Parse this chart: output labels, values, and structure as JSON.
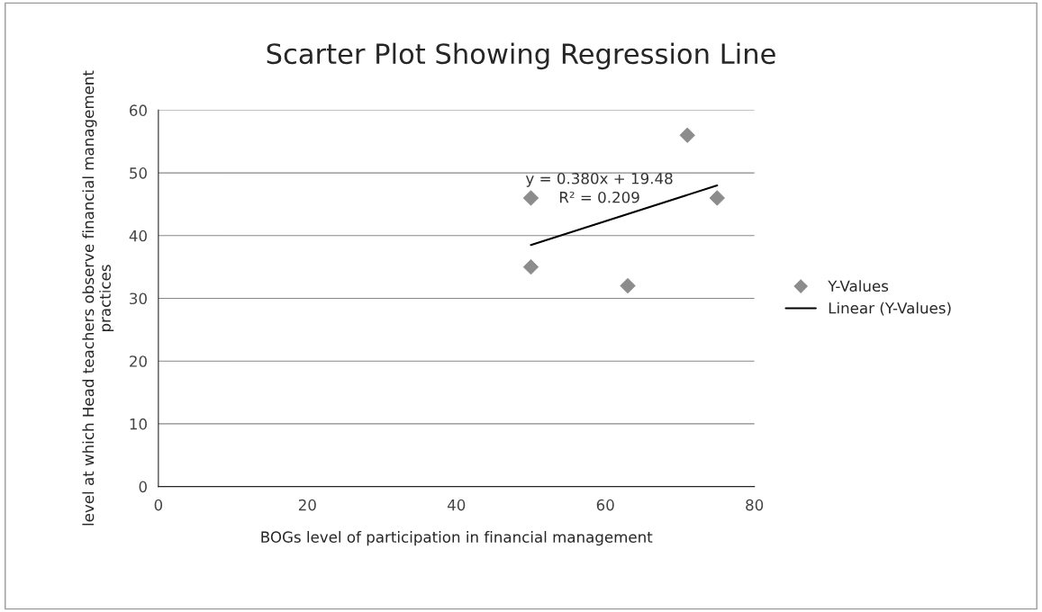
{
  "chart_data": {
    "type": "scatter",
    "title": "Scarter Plot Showing Regression Line",
    "xlabel": "BOGs level of participation in financial management",
    "ylabel": "level at which Head teachers observe financial management practices",
    "series": [
      {
        "name": "Y-Values",
        "color": "#8c8c8c",
        "marker": "diamond",
        "x": [
          50,
          50,
          63,
          71,
          75
        ],
        "values": [
          35,
          46,
          32,
          56,
          46
        ]
      },
      {
        "name": "Linear (Y-Values)",
        "type": "line",
        "color": "#000000",
        "marker": "none",
        "line_style": "solid",
        "x": [
          50,
          75
        ],
        "values": [
          38.5,
          48.0
        ]
      }
    ],
    "annotations": [
      "y = 0.380x + 19.48",
      "R² = 0.209"
    ],
    "xlim": [
      0,
      80
    ],
    "xticks": [
      0,
      20,
      40,
      60,
      80
    ],
    "ylim": [
      0,
      60
    ],
    "yticks": [
      0,
      10,
      20,
      30,
      40,
      50,
      60
    ],
    "grid": "y",
    "legend": "right"
  }
}
